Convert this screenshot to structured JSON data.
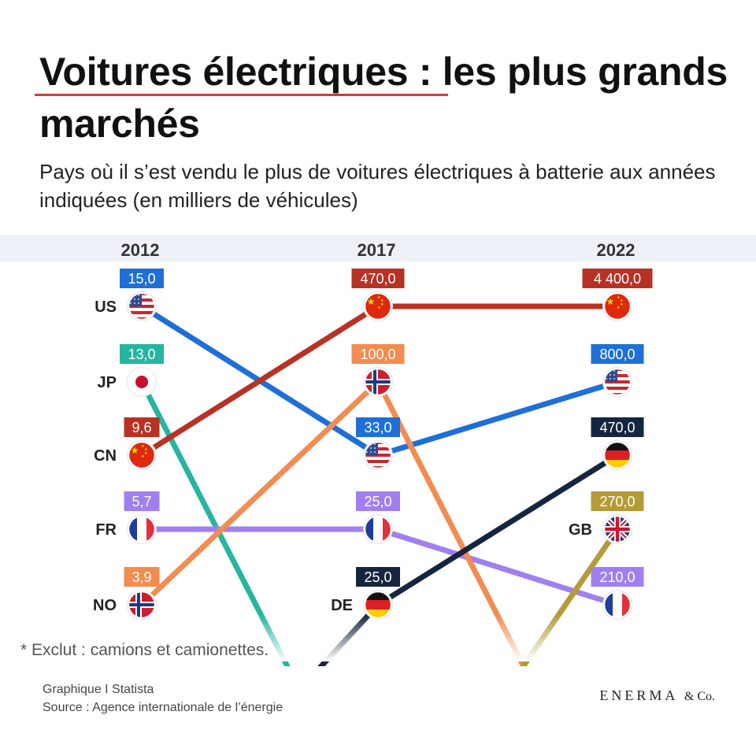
{
  "title": "Voitures électriques : les plus grands marchés",
  "subtitle": "Pays où il s’est vendu le plus de voitures électriques à batterie aux années indiquées (en milliers de véhicules)",
  "footnote": "* Exclut : camions et camionettes.",
  "credit_line1": "Graphique I Statista",
  "credit_line2": "Source : Agence internationale de l’énergie",
  "brand": "ENERMA",
  "brand_suffix": "& Co.",
  "colors": {
    "US": "#1f6fd8",
    "JP": "#26b5a0",
    "CN": "#b83224",
    "FR": "#a07ff0",
    "NO": "#f28c50",
    "DE": "#14263f",
    "GB": "#b49b36",
    "title_underline": "#d43a32"
  },
  "chart_data": {
    "type": "bump",
    "title": "Voitures électriques : les plus grands marchés",
    "unit": "milliers de véhicules",
    "years": [
      "2012",
      "2017",
      "2022"
    ],
    "rankings": {
      "2012": [
        {
          "country": "US",
          "value": "15,0",
          "label": "US"
        },
        {
          "country": "JP",
          "value": "13,0",
          "label": "JP"
        },
        {
          "country": "CN",
          "value": "9,6",
          "label": "CN"
        },
        {
          "country": "FR",
          "value": "5,7",
          "label": "FR"
        },
        {
          "country": "NO",
          "value": "3,9",
          "label": "NO"
        }
      ],
      "2017": [
        {
          "country": "CN",
          "value": "470,0"
        },
        {
          "country": "NO",
          "value": "100,0"
        },
        {
          "country": "US",
          "value": "33,0"
        },
        {
          "country": "FR",
          "value": "25,0"
        },
        {
          "country": "DE",
          "value": "25,0",
          "label": "DE"
        }
      ],
      "2022": [
        {
          "country": "CN",
          "value": "4 400,0"
        },
        {
          "country": "US",
          "value": "800,0"
        },
        {
          "country": "DE",
          "value": "470,0"
        },
        {
          "country": "GB",
          "value": "270,0",
          "label": "GB"
        },
        {
          "country": "FR",
          "value": "210,0"
        }
      ]
    }
  }
}
